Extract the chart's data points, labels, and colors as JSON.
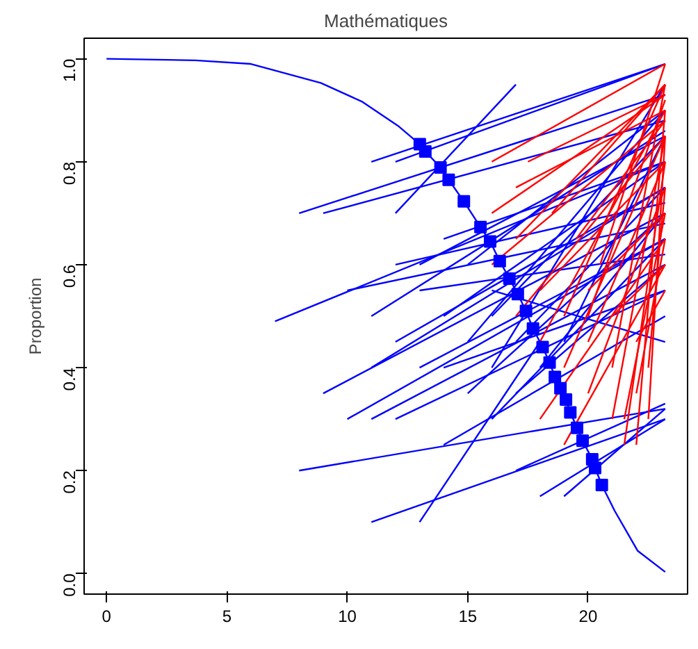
{
  "chart_data": {
    "type": "line",
    "title": "Mathématiques",
    "ylabel": "Proportion",
    "xlim": [
      -0.93,
      24.13
    ],
    "ylim": [
      -0.04,
      1.04
    ],
    "xticks": [
      0,
      5,
      10,
      15,
      20
    ],
    "yticks": [
      {
        "value": 0,
        "label": "0.0"
      },
      {
        "value": 0.2,
        "label": "0.2"
      },
      {
        "value": 0.4,
        "label": "0.4"
      },
      {
        "value": 0.6,
        "label": "0.6"
      },
      {
        "value": 0.8,
        "label": "0.8"
      },
      {
        "value": 1,
        "label": "1.0"
      }
    ],
    "grid": false,
    "line_style": "solid",
    "series": [
      {
        "color": "#0000ff",
        "x": [
          7,
          23.2
        ],
        "values": [
          0.49,
          0.8
        ]
      },
      {
        "color": "#0000ff",
        "x": [
          8,
          23.2
        ],
        "values": [
          0.7,
          0.93
        ]
      },
      {
        "color": "#0000ff",
        "x": [
          9,
          23.2
        ],
        "values": [
          0.7,
          0.88
        ]
      },
      {
        "color": "#0000ff",
        "x": [
          11,
          23.2
        ],
        "values": [
          0.8,
          0.99
        ]
      },
      {
        "color": "#0000ff",
        "x": [
          12,
          23.2
        ],
        "values": [
          0.8,
          0.99
        ]
      },
      {
        "color": "#0000ff",
        "x": [
          12,
          17
        ],
        "values": [
          0.7,
          0.95
        ]
      },
      {
        "color": "#0000ff",
        "x": [
          11,
          23.2
        ],
        "values": [
          0.5,
          0.86
        ]
      },
      {
        "color": "#0000ff",
        "x": [
          9,
          23.2
        ],
        "values": [
          0.35,
          0.7
        ]
      },
      {
        "color": "#0000ff",
        "x": [
          10,
          23.2
        ],
        "values": [
          0.3,
          0.65
        ]
      },
      {
        "color": "#0000ff",
        "x": [
          11,
          23.2
        ],
        "values": [
          0.3,
          0.6
        ]
      },
      {
        "color": "#0000ff",
        "x": [
          11,
          23.2
        ],
        "values": [
          0.4,
          0.75
        ]
      },
      {
        "color": "#0000ff",
        "x": [
          12,
          23.2
        ],
        "values": [
          0.3,
          0.55
        ]
      },
      {
        "color": "#0000ff",
        "x": [
          8,
          23.2
        ],
        "values": [
          0.2,
          0.32
        ]
      },
      {
        "color": "#0000ff",
        "x": [
          11,
          23.2
        ],
        "values": [
          0.1,
          0.3
        ]
      },
      {
        "color": "#0000ff",
        "x": [
          13,
          18
        ],
        "values": [
          0.1,
          0.45
        ]
      },
      {
        "color": "#0000ff",
        "x": [
          14,
          23.2
        ],
        "values": [
          0.25,
          0.5
        ]
      },
      {
        "color": "#0000ff",
        "x": [
          17,
          23.2
        ],
        "values": [
          0.2,
          0.33
        ]
      },
      {
        "color": "#0000ff",
        "x": [
          18,
          23.2
        ],
        "values": [
          0.15,
          0.3
        ]
      },
      {
        "color": "#0000ff",
        "x": [
          19,
          23.2
        ],
        "values": [
          0.15,
          0.32
        ]
      },
      {
        "color": "#0000ff",
        "x": [
          13,
          23.2
        ],
        "values": [
          0.6,
          0.85
        ]
      },
      {
        "color": "#0000ff",
        "x": [
          14,
          23.2
        ],
        "values": [
          0.5,
          0.8
        ]
      },
      {
        "color": "#0000ff",
        "x": [
          15,
          23.2
        ],
        "values": [
          0.45,
          0.9
        ]
      },
      {
        "color": "#0000ff",
        "x": [
          15,
          23.2
        ],
        "values": [
          0.35,
          0.7
        ]
      },
      {
        "color": "#0000ff",
        "x": [
          16,
          23.2
        ],
        "values": [
          0.4,
          0.95
        ]
      },
      {
        "color": "#0000ff",
        "x": [
          16,
          23.2
        ],
        "values": [
          0.3,
          0.65
        ]
      },
      {
        "color": "#0000ff",
        "x": [
          17,
          23.2
        ],
        "values": [
          0.35,
          0.6
        ]
      },
      {
        "color": "#0000ff",
        "x": [
          14,
          23.2
        ],
        "values": [
          0.65,
          0.8
        ]
      },
      {
        "color": "#0000ff",
        "x": [
          13,
          23.2
        ],
        "values": [
          0.4,
          0.65
        ]
      },
      {
        "color": "#0000ff",
        "x": [
          12,
          23.2
        ],
        "values": [
          0.45,
          0.75
        ]
      },
      {
        "color": "#0000ff",
        "x": [
          15,
          23.2
        ],
        "values": [
          0.6,
          0.9
        ]
      },
      {
        "color": "#0000ff",
        "x": [
          16,
          23.2
        ],
        "values": [
          0.5,
          0.85
        ]
      },
      {
        "color": "#0000ff",
        "x": [
          17,
          23.2
        ],
        "values": [
          0.45,
          0.75
        ]
      },
      {
        "color": "#0000ff",
        "x": [
          18,
          23.2
        ],
        "values": [
          0.4,
          0.7
        ]
      },
      {
        "color": "#0000ff",
        "x": [
          13,
          23.2
        ],
        "values": [
          0.55,
          0.62
        ]
      },
      {
        "color": "#0000ff",
        "x": [
          14,
          23.2
        ],
        "values": [
          0.4,
          0.55
        ]
      },
      {
        "color": "#0000ff",
        "x": [
          12,
          23.2
        ],
        "values": [
          0.6,
          0.72
        ]
      },
      {
        "color": "#0000ff",
        "x": [
          10,
          23.2
        ],
        "values": [
          0.55,
          0.68
        ]
      },
      {
        "color": "#0000ff",
        "x": [
          16,
          23.2
        ],
        "values": [
          0.55,
          0.45
        ]
      },
      {
        "color": "#0000ff",
        "x": [
          19,
          23.2
        ],
        "values": [
          0.45,
          0.85
        ]
      },
      {
        "color": "#ff0000",
        "x": [
          16,
          23.2
        ],
        "values": [
          0.8,
          0.99
        ]
      },
      {
        "color": "#ff0000",
        "x": [
          16,
          23.2
        ],
        "values": [
          0.7,
          0.93
        ]
      },
      {
        "color": "#ff0000",
        "x": [
          16,
          23.2
        ],
        "values": [
          0.6,
          0.88
        ]
      },
      {
        "color": "#ff0000",
        "x": [
          17,
          23.2
        ],
        "values": [
          0.75,
          0.9
        ]
      },
      {
        "color": "#ff0000",
        "x": [
          17,
          23.2
        ],
        "values": [
          0.65,
          0.95
        ]
      },
      {
        "color": "#ff0000",
        "x": [
          17,
          23.2
        ],
        "values": [
          0.5,
          0.85
        ]
      },
      {
        "color": "#ff0000",
        "x": [
          18,
          23.2
        ],
        "values": [
          0.55,
          0.8
        ]
      },
      {
        "color": "#ff0000",
        "x": [
          18,
          23.2
        ],
        "values": [
          0.45,
          0.9
        ]
      },
      {
        "color": "#ff0000",
        "x": [
          19,
          23.2
        ],
        "values": [
          0.5,
          0.95
        ]
      },
      {
        "color": "#ff0000",
        "x": [
          19,
          23.2
        ],
        "values": [
          0.4,
          0.85
        ]
      },
      {
        "color": "#ff0000",
        "x": [
          20,
          23.2
        ],
        "values": [
          0.45,
          0.8
        ]
      },
      {
        "color": "#ff0000",
        "x": [
          20,
          23.2
        ],
        "values": [
          0.35,
          0.75
        ]
      },
      {
        "color": "#ff0000",
        "x": [
          21,
          23.2
        ],
        "values": [
          0.3,
          0.85
        ]
      },
      {
        "color": "#ff0000",
        "x": [
          21,
          23.2
        ],
        "values": [
          0.4,
          0.95
        ]
      },
      {
        "color": "#ff0000",
        "x": [
          21.5,
          23.2
        ],
        "values": [
          0.25,
          0.8
        ]
      },
      {
        "color": "#ff0000",
        "x": [
          21.5,
          23.2
        ],
        "values": [
          0.3,
          0.7
        ]
      },
      {
        "color": "#ff0000",
        "x": [
          22,
          23.2
        ],
        "values": [
          0.25,
          0.9
        ]
      },
      {
        "color": "#ff0000",
        "x": [
          22,
          23.2
        ],
        "values": [
          0.35,
          0.65
        ]
      },
      {
        "color": "#ff0000",
        "x": [
          22.5,
          23.2
        ],
        "values": [
          0.3,
          0.85
        ]
      },
      {
        "color": "#ff0000",
        "x": [
          22.5,
          23.2
        ],
        "values": [
          0.4,
          0.75
        ]
      },
      {
        "color": "#ff0000",
        "x": [
          20.5,
          23.2
        ],
        "values": [
          0.6,
          0.99
        ]
      },
      {
        "color": "#ff0000",
        "x": [
          19.5,
          23.2
        ],
        "values": [
          0.65,
          0.88
        ]
      },
      {
        "color": "#ff0000",
        "x": [
          18.5,
          23.2
        ],
        "values": [
          0.7,
          0.95
        ]
      },
      {
        "color": "#ff0000",
        "x": [
          17.5,
          23.2
        ],
        "values": [
          0.8,
          0.93
        ]
      },
      {
        "color": "#ff0000",
        "x": [
          20,
          23.2
        ],
        "values": [
          0.55,
          0.7
        ]
      },
      {
        "color": "#ff0000",
        "x": [
          21,
          23.2
        ],
        "values": [
          0.5,
          0.6
        ]
      },
      {
        "color": "#ff0000",
        "x": [
          22,
          23.2
        ],
        "values": [
          0.45,
          0.55
        ]
      },
      {
        "color": "#ff0000",
        "x": [
          18,
          23.2
        ],
        "values": [
          0.3,
          0.65
        ]
      },
      {
        "color": "#ff0000",
        "x": [
          19,
          23.2
        ],
        "values": [
          0.25,
          0.6
        ]
      },
      {
        "color": "#ff0000",
        "x": [
          20,
          23.2
        ],
        "values": [
          0.5,
          0.92
        ]
      },
      {
        "color": "#0000ff",
        "x": [
          0,
          3.7,
          6,
          8.9,
          10.6,
          12.1,
          13.01,
          13.24,
          13.87,
          14.21,
          14.84,
          15.53,
          15.93,
          16.33,
          16.73,
          17.08,
          17.42,
          17.71,
          18.11,
          18.4,
          18.62,
          18.85,
          19.08,
          19.26,
          19.54,
          19.77,
          20.17,
          20.29,
          20.57,
          21.1,
          22.06,
          23.2
        ],
        "values": [
          1.0,
          0.997,
          0.99,
          0.953,
          0.917,
          0.87,
          0.834,
          0.82,
          0.789,
          0.765,
          0.723,
          0.673,
          0.645,
          0.607,
          0.573,
          0.543,
          0.51,
          0.476,
          0.44,
          0.41,
          0.382,
          0.36,
          0.338,
          0.313,
          0.283,
          0.258,
          0.222,
          0.205,
          0.172,
          0.122,
          0.044,
          0.003
        ]
      },
      {
        "type": "scatter",
        "marker": "square",
        "color": "#0000ff",
        "x": [
          13.01,
          13.24,
          13.87,
          14.21,
          14.84,
          15.53,
          15.93,
          16.33,
          16.73,
          17.08,
          17.42,
          17.71,
          18.11,
          18.4,
          18.62,
          18.85,
          19.08,
          19.26,
          19.54,
          19.77,
          20.17,
          20.29,
          20.57
        ],
        "values": [
          0.834,
          0.82,
          0.789,
          0.765,
          0.723,
          0.673,
          0.645,
          0.607,
          0.573,
          0.543,
          0.51,
          0.476,
          0.44,
          0.41,
          0.382,
          0.36,
          0.338,
          0.313,
          0.283,
          0.258,
          0.222,
          0.205,
          0.172
        ]
      }
    ]
  }
}
